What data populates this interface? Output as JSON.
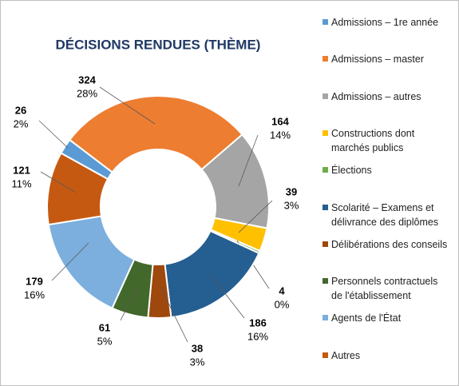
{
  "chart_data": {
    "type": "pie",
    "donut": true,
    "title": "DÉCISIONS RENDUES (THÈME)",
    "categories": [
      "Admissions – 1re année",
      "Admissions – master",
      "Admissions – autres",
      "Constructions dont marchés publics",
      "Élections",
      "Scolarité – Examens et délivrance des diplômes",
      "Délibérations des conseils",
      "Personnels contractuels de l'établissement",
      "Agents de l'État",
      "Autres"
    ],
    "values": [
      26,
      324,
      164,
      39,
      4,
      186,
      38,
      61,
      179,
      121
    ],
    "percent_labels": [
      "2%",
      "28%",
      "14%",
      "3%",
      "0%",
      "16%",
      "3%",
      "5%",
      "16%",
      "11%"
    ],
    "colors": [
      "#5B9BD5",
      "#ED7D31",
      "#A5A5A5",
      "#FFC000",
      "#70AD47",
      "#255E91",
      "#9E480E",
      "#43682B",
      "#7CAFDD",
      "#C65911"
    ]
  }
}
